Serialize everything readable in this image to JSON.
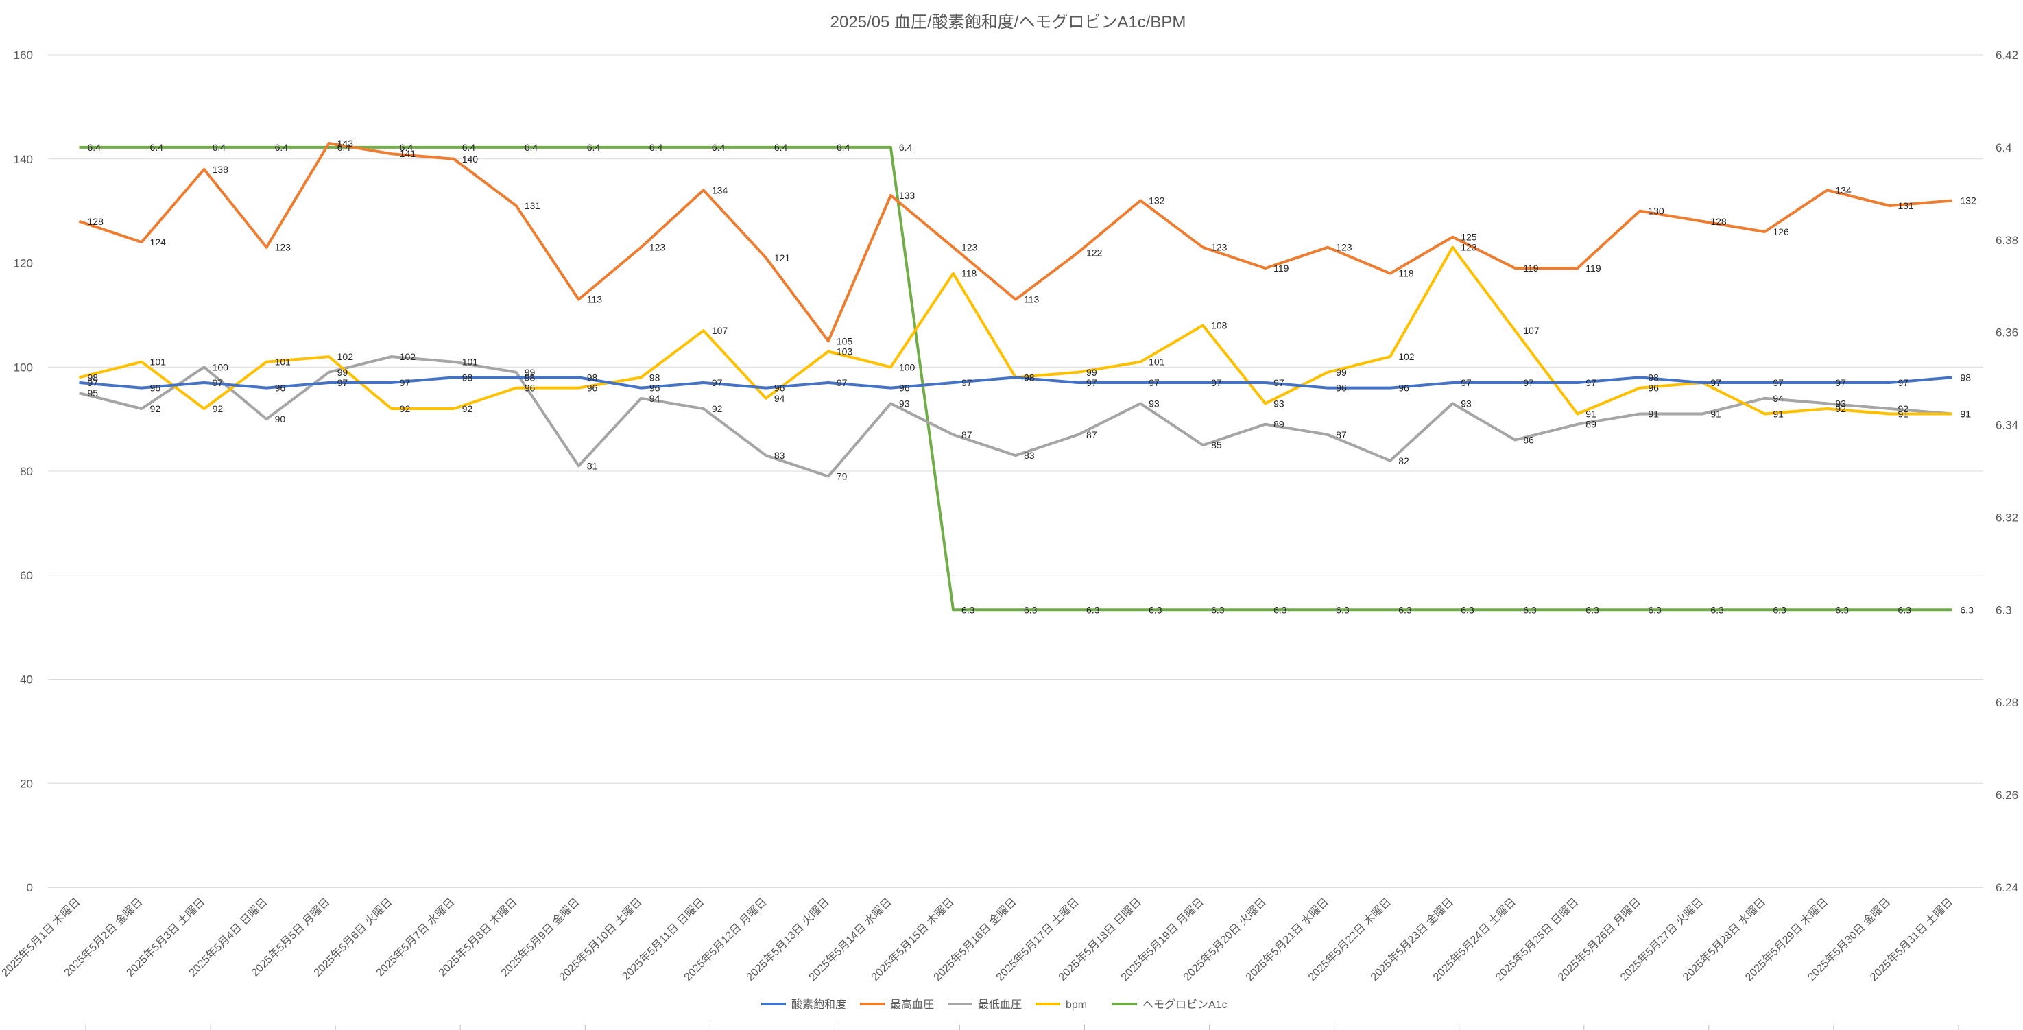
{
  "chart_data": {
    "type": "line",
    "title": "2025/05 血圧/酸素飽和度/ヘモグロビンA1c/BPM",
    "categories": [
      "2025年5月1日 木曜日",
      "2025年5月2日 金曜日",
      "2025年5月3日 土曜日",
      "2025年5月4日 日曜日",
      "2025年5月5日 月曜日",
      "2025年5月6日 火曜日",
      "2025年5月7日 水曜日",
      "2025年5月8日 木曜日",
      "2025年5月9日 金曜日",
      "2025年5月10日 土曜日",
      "2025年5月11日 日曜日",
      "2025年5月12日 月曜日",
      "2025年5月13日 火曜日",
      "2025年5月14日 水曜日",
      "2025年5月15日 木曜日",
      "2025年5月16日 金曜日",
      "2025年5月17日 土曜日",
      "2025年5月18日 日曜日",
      "2025年5月19日 月曜日",
      "2025年5月20日 火曜日",
      "2025年5月21日 水曜日",
      "2025年5月22日 木曜日",
      "2025年5月23日 金曜日",
      "2025年5月24日 土曜日",
      "2025年5月25日 日曜日",
      "2025年5月26日 月曜日",
      "2025年5月27日 火曜日",
      "2025年5月28日 水曜日",
      "2025年5月29日 木曜日",
      "2025年5月30日 金曜日",
      "2025年5月31日 土曜日"
    ],
    "y_left": {
      "min": 0,
      "max": 160,
      "ticks": [
        "0",
        "20",
        "40",
        "60",
        "80",
        "100",
        "120",
        "140",
        "160"
      ]
    },
    "y_right": {
      "min": 6.24,
      "max": 6.42,
      "ticks": [
        "6.24",
        "6.26",
        "6.28",
        "6.3",
        "6.32",
        "6.34",
        "6.36",
        "6.38",
        "6.4",
        "6.42"
      ]
    },
    "grid": true,
    "legend_position": "bottom",
    "series": [
      {
        "name": "酸素飽和度",
        "axis": "left",
        "color": "#4472C4",
        "values": [
          97,
          96,
          97,
          96,
          97,
          97,
          98,
          98,
          98,
          96,
          97,
          96,
          97,
          96,
          97,
          98,
          97,
          97,
          97,
          97,
          96,
          96,
          97,
          97,
          97,
          98,
          97,
          97,
          97,
          97,
          98
        ]
      },
      {
        "name": "最高血圧",
        "axis": "left",
        "color": "#ED7D31",
        "values": [
          128,
          124,
          138,
          123,
          143,
          141,
          140,
          131,
          113,
          123,
          134,
          121,
          105,
          133,
          123,
          113,
          122,
          132,
          123,
          119,
          123,
          118,
          125,
          119,
          119,
          130,
          128,
          126,
          134,
          131,
          132
        ]
      },
      {
        "name": "最低血圧",
        "axis": "left",
        "color": "#A5A5A5",
        "values": [
          95,
          92,
          100,
          90,
          99,
          102,
          101,
          99,
          81,
          94,
          92,
          83,
          79,
          93,
          87,
          83,
          87,
          93,
          85,
          89,
          87,
          82,
          93,
          86,
          89,
          91,
          91,
          94,
          93,
          92,
          91
        ]
      },
      {
        "name": "bpm",
        "axis": "left",
        "color": "#FFC000",
        "values": [
          98,
          101,
          92,
          101,
          102,
          92,
          92,
          96,
          96,
          98,
          107,
          94,
          103,
          100,
          118,
          98,
          99,
          101,
          108,
          93,
          99,
          102,
          123,
          107,
          91,
          96,
          97,
          91,
          92,
          91,
          91
        ]
      },
      {
        "name": "ヘモグロビンA1c",
        "axis": "right",
        "color": "#70AD47",
        "values": [
          6.4,
          6.4,
          6.4,
          6.4,
          6.4,
          6.4,
          6.4,
          6.4,
          6.4,
          6.4,
          6.4,
          6.4,
          6.4,
          6.4,
          6.3,
          6.3,
          6.3,
          6.3,
          6.3,
          6.3,
          6.3,
          6.3,
          6.3,
          6.3,
          6.3,
          6.3,
          6.3,
          6.3,
          6.3,
          6.3,
          6.3
        ]
      }
    ],
    "data_labels": {
      "酸素飽和度": [
        "97",
        "96",
        "97",
        "96",
        "97",
        "97",
        "98",
        "98",
        "98",
        "96",
        "97",
        "96",
        "97",
        "96",
        "97",
        "98",
        "97",
        "97",
        "97",
        "97",
        "96",
        "96",
        "97",
        "97",
        "97",
        "98",
        "97",
        "97",
        "97",
        "97",
        "98"
      ],
      "最高血圧": [
        "128",
        "124",
        "138",
        "123",
        "143",
        "141",
        "140",
        "131",
        "113",
        "123",
        "134",
        "121",
        "105",
        "133",
        "123",
        "113",
        "122",
        "132",
        "123",
        "119",
        "123",
        "118",
        "125",
        "119",
        "119",
        "130",
        "128",
        "126",
        "134",
        "131",
        "132"
      ],
      "最低血圧": [
        "95",
        "92",
        "100",
        "90",
        "99",
        "102",
        "101",
        "99",
        "81",
        "94",
        "92",
        "83",
        "79",
        "93",
        "87",
        "83",
        "87",
        "93",
        "85",
        "89",
        "87",
        "82",
        "93",
        "86",
        "89",
        "91",
        "91",
        "94",
        "93",
        "92",
        "91"
      ],
      "bpm": [
        "98",
        "101",
        "92",
        "101",
        "102",
        "92",
        "92",
        "96",
        "96",
        "98",
        "107",
        "94",
        "103",
        "100",
        "118",
        "98",
        "99",
        "101",
        "108",
        "93",
        "99",
        "102",
        "123",
        "107",
        "91",
        "96",
        "97",
        "91",
        "92",
        "91",
        "91"
      ],
      "ヘモグロビンA1c": [
        "6.4",
        "6.4",
        "6.4",
        "6.4",
        "6.4",
        "6.4",
        "6.4",
        "6.4",
        "6.4",
        "6.4",
        "6.4",
        "6.4",
        "6.4",
        "6.4",
        "6.3",
        "6.3",
        "6.3",
        "6.3",
        "6.3",
        "6.3",
        "6.3",
        "6.3",
        "6.3",
        "6.3",
        "6.3",
        "6.3",
        "6.3",
        "6.3",
        "6.3",
        "6.3",
        "6.3"
      ]
    }
  }
}
